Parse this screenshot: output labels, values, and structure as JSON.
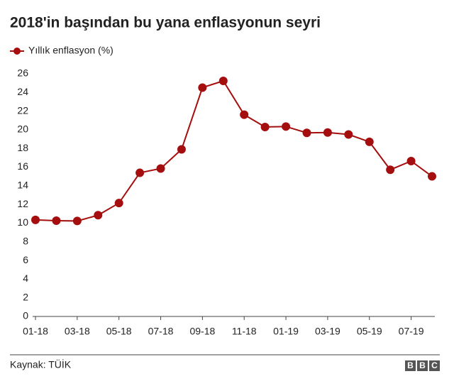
{
  "chart_data": {
    "type": "line",
    "title": "2018'in başından bu yana enflasyonun seyri",
    "categories": [
      "01-18",
      null,
      "03-18",
      null,
      "05-18",
      null,
      "07-18",
      null,
      "09-18",
      null,
      "11-18",
      null,
      "01-19",
      null,
      "03-19",
      null,
      "05-19",
      null,
      "07-19",
      null
    ],
    "series": [
      {
        "name": "Yıllık enflasyon (%)",
        "color": "#a50e0e",
        "values": [
          10.35,
          10.26,
          10.23,
          10.85,
          12.15,
          15.39,
          15.85,
          17.9,
          24.52,
          25.24,
          21.62,
          20.3,
          20.35,
          19.67,
          19.71,
          19.5,
          18.71,
          15.72,
          16.65,
          15.01
        ]
      }
    ],
    "ylim": [
      0,
      26
    ],
    "yticks": [
      0,
      2,
      4,
      6,
      8,
      10,
      12,
      14,
      16,
      18,
      20,
      22,
      24,
      26
    ],
    "grid": false,
    "legend": "top-left"
  },
  "source": "Kaynak: TÜİK",
  "logo": [
    "B",
    "B",
    "C"
  ]
}
